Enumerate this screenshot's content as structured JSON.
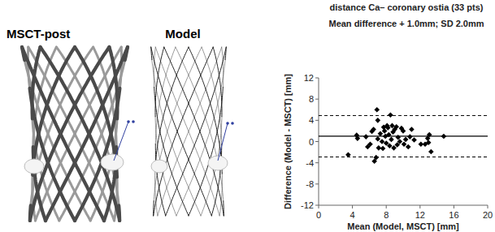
{
  "panels": [
    {
      "title": "MSCT-post"
    },
    {
      "title": "Model"
    }
  ],
  "chart_data": {
    "type": "scatter",
    "title": "distance Ca– coronary ostia (33 pts)",
    "subtitle": "Mean difference + 1.0mm; SD 2.0mm",
    "x_label": "Mean (Model, MSCT) [mm]",
    "y_label": "Difference (Model - MSCT) [mm]",
    "x": [
      3.5,
      4.5,
      4.6,
      5.6,
      5.8,
      6.1,
      6.3,
      6.5,
      6.6,
      6.8,
      6.9,
      7.0,
      7.0,
      7.1,
      7.3,
      7.5,
      7.6,
      7.7,
      7.8,
      7.9,
      8.0,
      8.1,
      8.2,
      8.3,
      8.4,
      8.5,
      8.6,
      8.7,
      8.8,
      8.9,
      9.0,
      9.2,
      9.3,
      9.4,
      9.6,
      9.8,
      10.0,
      10.1,
      10.3,
      10.6,
      10.8,
      11.0,
      11.3,
      12.1,
      12.6,
      12.9,
      13.0,
      13.1,
      13.3,
      14.8
    ],
    "values": [
      -2.5,
      1.2,
      0.6,
      0.9,
      -1.0,
      -0.5,
      1.9,
      2.3,
      -3.7,
      -3.0,
      6.0,
      4.0,
      0.5,
      -1.2,
      1.5,
      0.0,
      -1.3,
      2.7,
      2.0,
      1.0,
      -0.3,
      3.0,
      2.6,
      1.3,
      -0.8,
      5.0,
      0.4,
      3.0,
      1.8,
      -1.2,
      2.3,
      2.8,
      -0.6,
      0.8,
      0.0,
      2.5,
      2.0,
      -0.5,
      0.4,
      -1.0,
      0.9,
      2.3,
      0.3,
      -0.5,
      -0.5,
      0.6,
      -0.2,
      1.3,
      -1.9,
      1.0
    ],
    "mean_difference": 1.0,
    "limits_of_agreement": [
      -2.9,
      4.9
    ],
    "color": "#000000",
    "marker": "diamond",
    "xlim": [
      0,
      20
    ],
    "xticks": [
      0,
      4,
      8,
      12,
      16,
      20
    ],
    "ylim": [
      -12,
      12
    ],
    "yticks": [
      -12,
      -8,
      -4,
      0,
      4,
      8,
      12
    ],
    "grid": false
  }
}
